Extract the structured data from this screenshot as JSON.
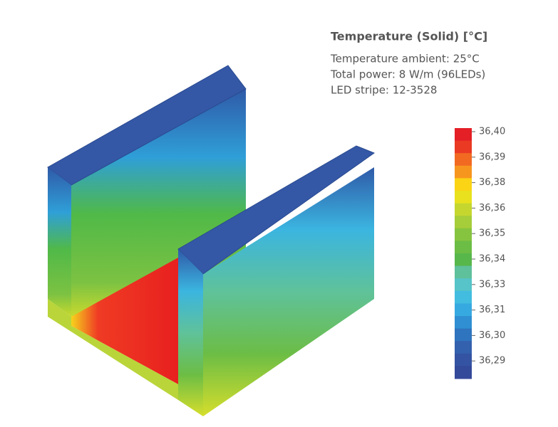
{
  "header": {
    "title": "Temperature (Solid) [°C]",
    "lines": [
      "Temperature ambient: 25°C",
      "Total power: 8 W/m (96LEDs)",
      "LED stripe: 12-3528"
    ]
  },
  "colorbar": {
    "labels": [
      "36,40",
      "36,39",
      "36,38",
      "36,36",
      "36,35",
      "36,34",
      "36,33",
      "36,31",
      "36,30",
      "36,29"
    ]
  }
}
